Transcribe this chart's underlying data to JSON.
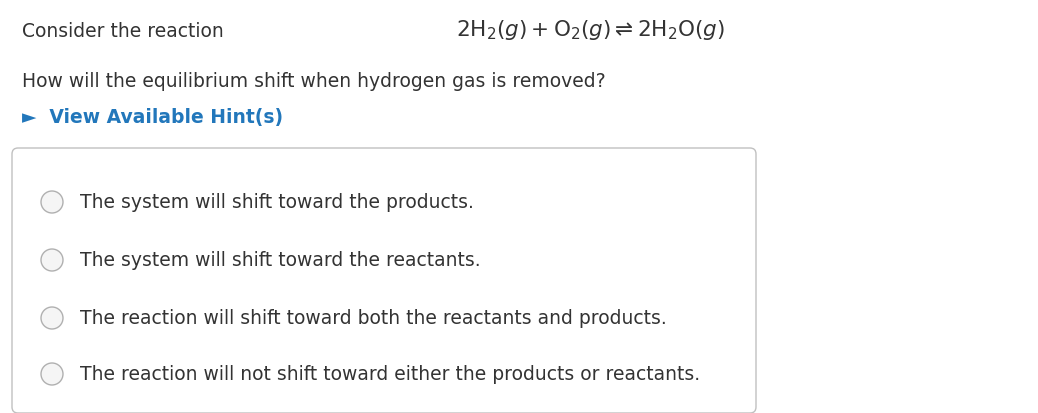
{
  "background_color": "#ffffff",
  "title_text": "Consider the reaction",
  "reaction_text": "$2\\mathrm{H_2}(g) + \\mathrm{O_2}(g) \\rightleftharpoons 2\\mathrm{H_2O}(g)$",
  "question_text": "How will the equilibrium shift when hydrogen gas is removed?",
  "hint_text": "►  View Available Hint(s)",
  "hint_color": "#2277bb",
  "options": [
    "The system will shift toward the products.",
    "The system will shift toward the reactants.",
    "The reaction will shift toward both the reactants and products.",
    "The reaction will not shift toward either the products or reactants."
  ],
  "option_text_color": "#333333",
  "box_edge_color": "#c0c0c0",
  "radio_edge_color": "#b0b0b0",
  "radio_fill_color": "#f5f5f5",
  "font_size_title": 13.5,
  "font_size_reaction": 15.5,
  "font_size_question": 13.5,
  "font_size_hint": 13.5,
  "font_size_options": 13.5,
  "fig_width": 10.38,
  "fig_height": 4.14,
  "dpi": 100
}
